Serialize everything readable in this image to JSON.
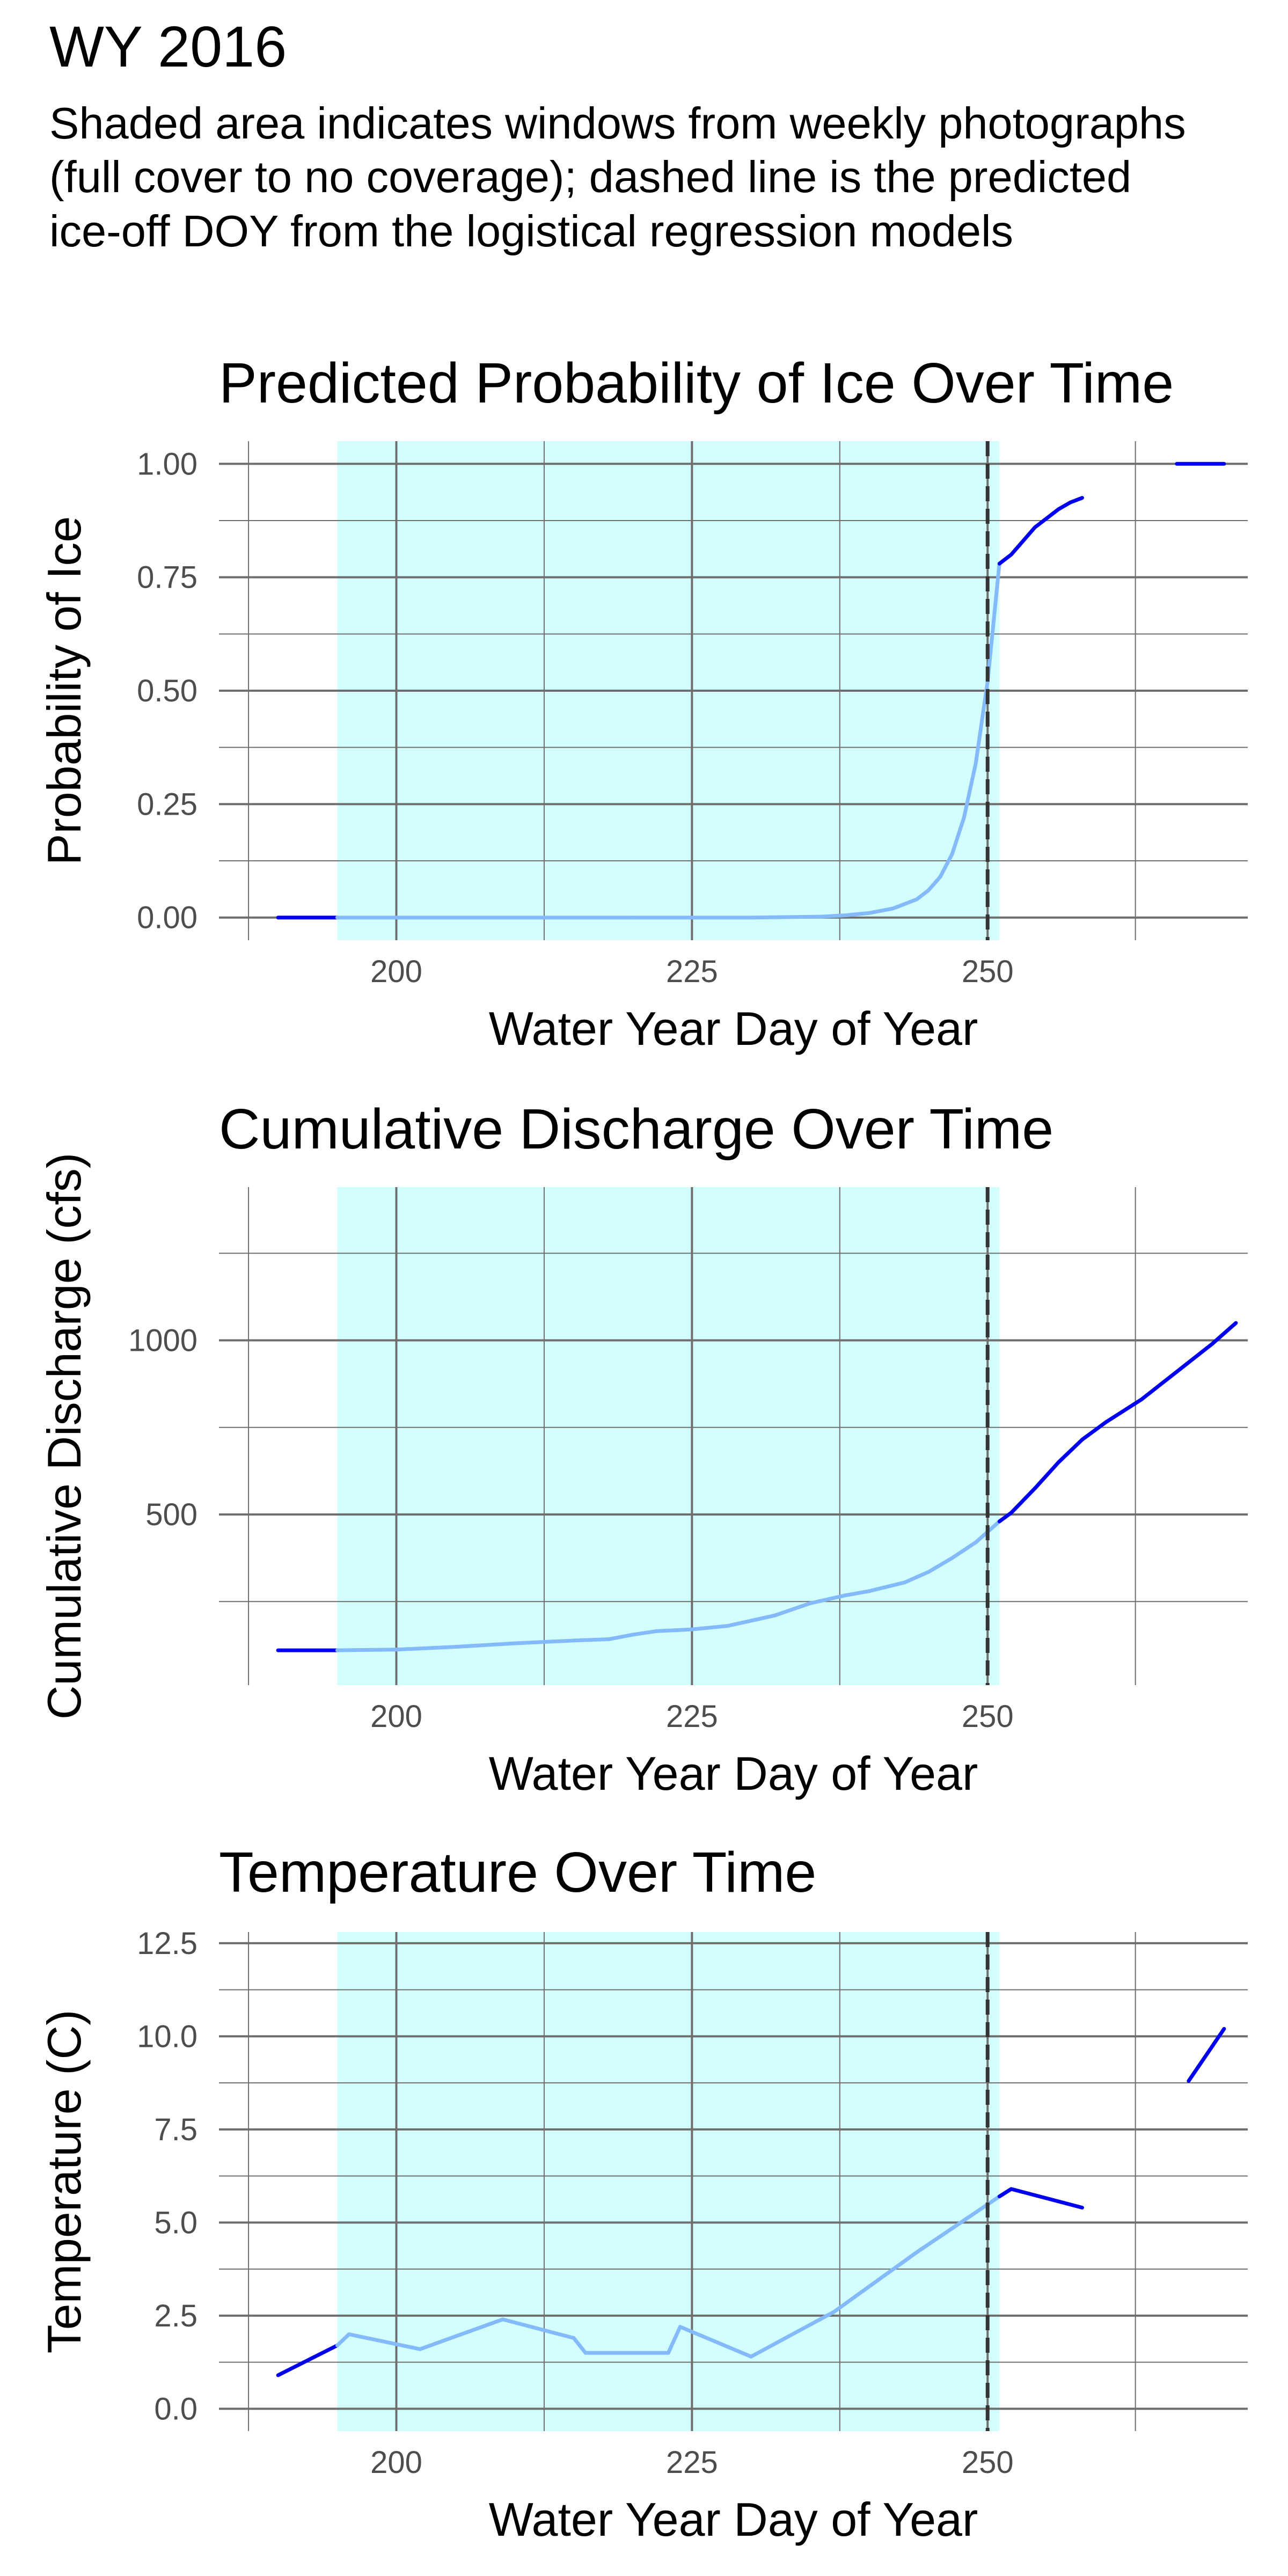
{
  "header": {
    "title": "WY 2016",
    "subtitle": "Shaded area indicates windows from weekly photographs (full cover to no coverage); dashed line is the predicted ice-off DOY from the logistical regression models"
  },
  "colors": {
    "shade": "#d3fefe",
    "line_inside_window": "#84b9fa",
    "line_outside_window": "#0000ee",
    "grid": "#6e6e6e",
    "dashed_line": "#333333"
  },
  "chart_data": [
    {
      "type": "line",
      "title": "Predicted Probability of Ice Over Time",
      "xlabel": "Water Year Day of Year",
      "ylabel": "Probability of Ice",
      "xlim": [
        185,
        272
      ],
      "ylim": [
        -0.05,
        1.05
      ],
      "xticks": [
        200,
        225,
        250
      ],
      "xtick_labels": [
        "200",
        "225",
        "250"
      ],
      "yticks": [
        0,
        0.25,
        0.5,
        0.75,
        1.0
      ],
      "ytick_labels": [
        "0.00",
        "0.25",
        "0.50",
        "0.75",
        "1.00"
      ],
      "grid": true,
      "shaded_window": [
        195,
        251
      ],
      "dashed_vline_x": 250,
      "series": [
        {
          "x": [
            190,
            195,
            200,
            210,
            220,
            230,
            236,
            238,
            240,
            242,
            244,
            245,
            246,
            247,
            248,
            249,
            250,
            251
          ],
          "y": [
            0.0,
            0.0,
            0.0,
            0.0,
            0.0,
            0.0,
            0.002,
            0.005,
            0.01,
            0.02,
            0.04,
            0.06,
            0.09,
            0.14,
            0.22,
            0.34,
            0.52,
            0.78
          ]
        },
        {
          "x": [
            251,
            252,
            253,
            254,
            255,
            256,
            257,
            258
          ],
          "y": [
            0.78,
            0.8,
            0.83,
            0.86,
            0.88,
            0.9,
            0.915,
            0.925
          ]
        },
        {
          "x": [
            266,
            270
          ],
          "y": [
            1.0,
            1.0
          ]
        }
      ]
    },
    {
      "type": "line",
      "title": "Cumulative Discharge Over Time",
      "xlabel": "Water Year Day of Year",
      "ylabel": "Cumulative Discharge (cfs)",
      "xlim": [
        185,
        272
      ],
      "ylim": [
        10,
        1440
      ],
      "xticks": [
        200,
        225,
        250
      ],
      "xtick_labels": [
        "200",
        "225",
        "250"
      ],
      "yticks": [
        500,
        1000
      ],
      "ytick_labels": [
        "500",
        "1000"
      ],
      "grid": true,
      "shaded_window": [
        195,
        251
      ],
      "dashed_vline_x": 250,
      "series": [
        {
          "x": [
            190,
            195,
            200,
            205,
            210,
            215,
            218,
            220,
            222,
            225,
            228,
            232,
            235,
            238,
            240,
            243,
            245,
            247,
            249,
            251
          ],
          "y": [
            110,
            110,
            112,
            120,
            130,
            138,
            142,
            155,
            165,
            170,
            180,
            210,
            245,
            268,
            280,
            305,
            335,
            375,
            420,
            480
          ]
        },
        {
          "x": [
            251,
            252,
            254,
            256,
            258,
            260,
            263,
            266,
            269,
            271
          ],
          "y": [
            480,
            505,
            575,
            650,
            715,
            765,
            830,
            910,
            990,
            1050
          ]
        }
      ]
    },
    {
      "type": "line",
      "title": "Temperature Over Time",
      "xlabel": "Water Year Day of Year",
      "ylabel": "Temperature (C)",
      "xlim": [
        185,
        272
      ],
      "ylim": [
        -0.6,
        12.8
      ],
      "xticks": [
        200,
        225,
        250
      ],
      "xtick_labels": [
        "200",
        "225",
        "250"
      ],
      "yticks": [
        0,
        2.5,
        5,
        7.5,
        10,
        12.5
      ],
      "ytick_labels": [
        "0.0",
        "2.5",
        "5.0",
        "7.5",
        "10.0",
        "12.5"
      ],
      "grid": true,
      "shaded_window": [
        195,
        251
      ],
      "dashed_vline_x": 250,
      "series": [
        {
          "x": [
            190,
            195
          ],
          "y": [
            0.9,
            1.7
          ]
        },
        {
          "x": [
            195,
            196,
            202,
            209,
            215,
            216,
            223,
            224,
            230,
            237,
            244,
            251
          ],
          "y": [
            1.7,
            2.0,
            1.6,
            2.4,
            1.9,
            1.5,
            1.5,
            2.2,
            1.4,
            2.6,
            4.2,
            5.7
          ]
        },
        {
          "x": [
            251,
            252,
            258
          ],
          "y": [
            5.7,
            5.9,
            5.4
          ]
        },
        {
          "x": [
            267,
            270
          ],
          "y": [
            8.8,
            10.2
          ]
        }
      ]
    }
  ]
}
